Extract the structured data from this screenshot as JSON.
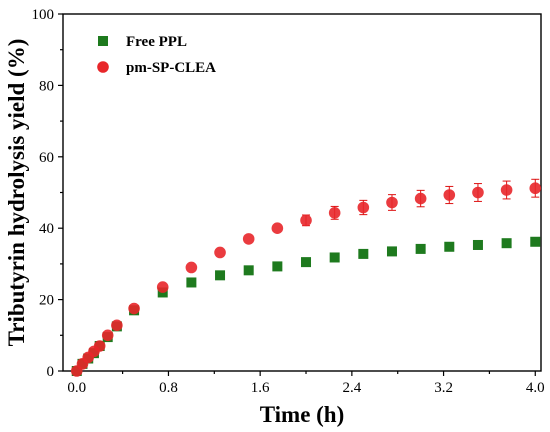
{
  "chart_data": {
    "type": "scatter",
    "xlabel": "Time (h)",
    "ylabel": "Tributyrin hydrolysis yield (%)",
    "xlim": [
      -0.12,
      4.05
    ],
    "ylim": [
      0,
      100
    ],
    "xticks": [
      "0.0",
      "0.8",
      "1.6",
      "2.4",
      "3.2",
      "4.0"
    ],
    "yticks": [
      "0",
      "20",
      "40",
      "60",
      "80",
      "100"
    ],
    "legend_position": "top-left",
    "grid": false,
    "series": [
      {
        "name": "Free PPL",
        "marker": "square",
        "color": "#1e7a1e",
        "x": [
          0.0,
          0.05,
          0.1,
          0.15,
          0.2,
          0.27,
          0.35,
          0.5,
          0.75,
          1.0,
          1.25,
          1.5,
          1.75,
          2.0,
          2.25,
          2.5,
          2.75,
          3.0,
          3.25,
          3.5,
          3.75,
          4.0
        ],
        "y": [
          0.0,
          2.0,
          3.5,
          5.0,
          7.0,
          9.5,
          12.5,
          17.0,
          22.0,
          24.8,
          26.8,
          28.2,
          29.3,
          30.5,
          31.8,
          32.8,
          33.5,
          34.2,
          34.8,
          35.3,
          35.8,
          36.2
        ]
      },
      {
        "name": "pm-SP-CLEA",
        "marker": "circle",
        "color": "#e8262a",
        "x": [
          0.0,
          0.05,
          0.1,
          0.15,
          0.2,
          0.27,
          0.35,
          0.5,
          0.75,
          1.0,
          1.25,
          1.5,
          1.75,
          2.0,
          2.25,
          2.5,
          2.75,
          3.0,
          3.25,
          3.5,
          3.75,
          4.0
        ],
        "y": [
          0.0,
          2.0,
          3.8,
          5.5,
          7.0,
          10.0,
          12.8,
          17.5,
          23.5,
          29.0,
          33.2,
          37.0,
          40.0,
          42.2,
          44.3,
          45.8,
          47.2,
          48.3,
          49.3,
          50.0,
          50.7,
          51.2
        ],
        "err": [
          0,
          0,
          0,
          0,
          0,
          0,
          0,
          0,
          0,
          0,
          0,
          0,
          0,
          1.5,
          1.8,
          2.0,
          2.2,
          2.3,
          2.4,
          2.5,
          2.5,
          2.5
        ]
      }
    ]
  }
}
